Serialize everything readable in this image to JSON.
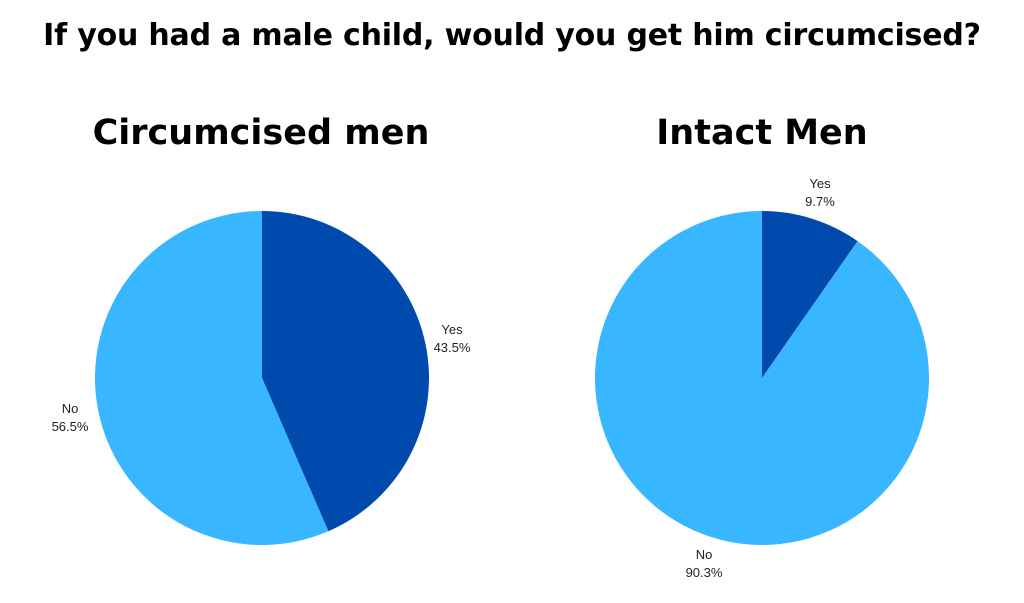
{
  "title": "If you had a male child, would you get him circumcised?",
  "colors": {
    "yes": "#004aad",
    "no": "#38b6ff"
  },
  "chart_data": [
    {
      "type": "pie",
      "title": "Circumcised men",
      "labels": [
        "Yes",
        "No"
      ],
      "values": [
        43.5,
        56.5
      ],
      "value_labels": [
        "43.5%",
        "56.5%"
      ]
    },
    {
      "type": "pie",
      "title": "Intact Men",
      "labels": [
        "Yes",
        "No"
      ],
      "values": [
        9.7,
        90.3
      ],
      "value_labels": [
        "9.7%",
        "90.3%"
      ]
    }
  ]
}
